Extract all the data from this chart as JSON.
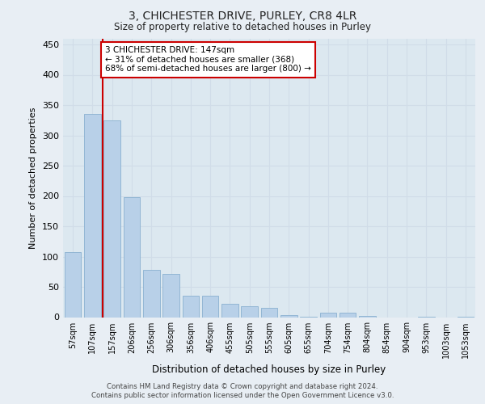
{
  "title": "3, CHICHESTER DRIVE, PURLEY, CR8 4LR",
  "subtitle": "Size of property relative to detached houses in Purley",
  "xlabel": "Distribution of detached houses by size in Purley",
  "ylabel": "Number of detached properties",
  "bar_labels": [
    "57sqm",
    "107sqm",
    "157sqm",
    "206sqm",
    "256sqm",
    "306sqm",
    "356sqm",
    "406sqm",
    "455sqm",
    "505sqm",
    "555sqm",
    "605sqm",
    "655sqm",
    "704sqm",
    "754sqm",
    "804sqm",
    "854sqm",
    "904sqm",
    "953sqm",
    "1003sqm",
    "1053sqm"
  ],
  "bar_values": [
    107,
    335,
    325,
    198,
    78,
    72,
    35,
    35,
    22,
    18,
    16,
    3,
    1,
    8,
    8,
    2,
    0,
    0,
    1,
    0,
    1
  ],
  "bar_color": "#b8d0e8",
  "bar_edge_color": "#8ab0d0",
  "grid_color": "#d0dce8",
  "bg_color": "#dce8f0",
  "fig_color": "#e8eef4",
  "annotation_text": "3 CHICHESTER DRIVE: 147sqm\n← 31% of detached houses are smaller (368)\n68% of semi-detached houses are larger (800) →",
  "annotation_box_color": "#ffffff",
  "annotation_border_color": "#cc0000",
  "red_line_color": "#cc0000",
  "ylim": [
    0,
    460
  ],
  "yticks": [
    0,
    50,
    100,
    150,
    200,
    250,
    300,
    350,
    400,
    450
  ],
  "footer_line1": "Contains HM Land Registry data © Crown copyright and database right 2024.",
  "footer_line2": "Contains public sector information licensed under the Open Government Licence v3.0."
}
